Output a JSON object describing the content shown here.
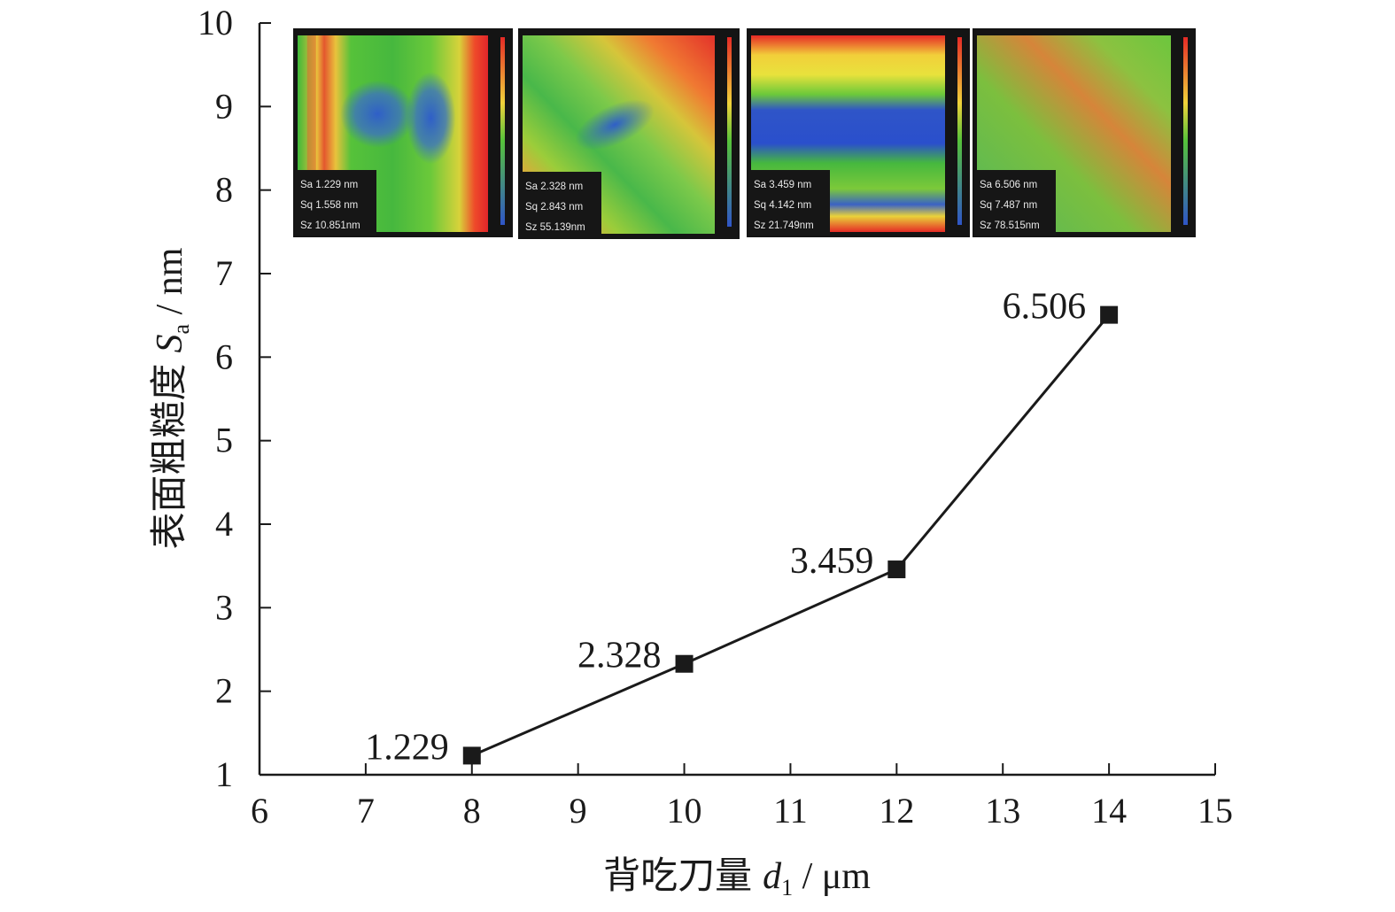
{
  "chart_data": {
    "type": "line",
    "title": "",
    "xlabel": {
      "main": "背吃刀量",
      "symbol": "d",
      "sub": "1",
      "unit": " / μm"
    },
    "ylabel": {
      "main": "表面粗糙度",
      "symbol": "S",
      "sub": "a",
      "unit": " / nm"
    },
    "xlim": [
      6,
      15
    ],
    "ylim": [
      1,
      10
    ],
    "xticks": [
      6,
      7,
      8,
      9,
      10,
      11,
      12,
      13,
      14,
      15
    ],
    "yticks": [
      1,
      2,
      3,
      4,
      5,
      6,
      7,
      8,
      9,
      10
    ],
    "grid": false,
    "series": [
      {
        "x": [
          8,
          10,
          12,
          14
        ],
        "y": [
          1.229,
          2.328,
          3.459,
          6.506
        ],
        "labels": [
          "1.229",
          "2.328",
          "3.459",
          "6.506"
        ],
        "color": "#1a1a1a",
        "marker": "square"
      }
    ],
    "insets": [
      {
        "palette": "a",
        "lines": [
          "Sa 1.229  nm",
          "Sq 1.558  nm",
          "Sz 10.851nm"
        ]
      },
      {
        "palette": "b",
        "lines": [
          "Sa 2.328  nm",
          "Sq 2.843  nm",
          "Sz 55.139nm"
        ]
      },
      {
        "palette": "c",
        "lines": [
          "Sa 3.459  nm",
          "Sq 4.142  nm",
          "Sz 21.749nm"
        ]
      },
      {
        "palette": "d",
        "lines": [
          "Sa 6.506  nm",
          "Sq 7.487  nm",
          "Sz 78.515nm"
        ]
      }
    ]
  }
}
